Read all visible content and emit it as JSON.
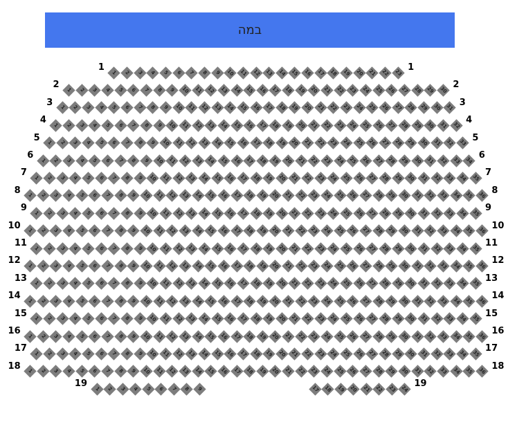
{
  "stage": {
    "label": "במה",
    "color": "#4477ee"
  },
  "seat_color": "#7d7d7d",
  "rows": [
    {
      "label": "1",
      "seat_ranges": [
        [
          1,
          23
        ]
      ]
    },
    {
      "label": "2",
      "seat_ranges": [
        [
          1,
          30
        ]
      ]
    },
    {
      "label": "3",
      "seat_ranges": [
        [
          1,
          31
        ]
      ]
    },
    {
      "label": "4",
      "seat_ranges": [
        [
          1,
          32
        ]
      ]
    },
    {
      "label": "5",
      "seat_ranges": [
        [
          1,
          33
        ]
      ]
    },
    {
      "label": "6",
      "seat_ranges": [
        [
          1,
          34
        ]
      ]
    },
    {
      "label": "7",
      "seat_ranges": [
        [
          1,
          35
        ]
      ]
    },
    {
      "label": "8",
      "seat_ranges": [
        [
          1,
          36
        ]
      ]
    },
    {
      "label": "9",
      "seat_ranges": [
        [
          1,
          35
        ]
      ]
    },
    {
      "label": "10",
      "seat_ranges": [
        [
          1,
          36
        ]
      ]
    },
    {
      "label": "11",
      "seat_ranges": [
        [
          1,
          35
        ]
      ]
    },
    {
      "label": "12",
      "seat_ranges": [
        [
          1,
          36
        ]
      ]
    },
    {
      "label": "13",
      "seat_ranges": [
        [
          1,
          35
        ]
      ]
    },
    {
      "label": "14",
      "seat_ranges": [
        [
          1,
          36
        ]
      ]
    },
    {
      "label": "15",
      "seat_ranges": [
        [
          1,
          35
        ]
      ]
    },
    {
      "label": "16",
      "seat_ranges": [
        [
          1,
          36
        ]
      ]
    },
    {
      "label": "17",
      "seat_ranges": [
        [
          1,
          35
        ]
      ]
    },
    {
      "label": "18",
      "seat_ranges": [
        [
          1,
          36
        ]
      ]
    },
    {
      "label": "19",
      "seat_ranges": [
        [
          1,
          9
        ],
        [
          17,
          24
        ]
      ]
    }
  ]
}
